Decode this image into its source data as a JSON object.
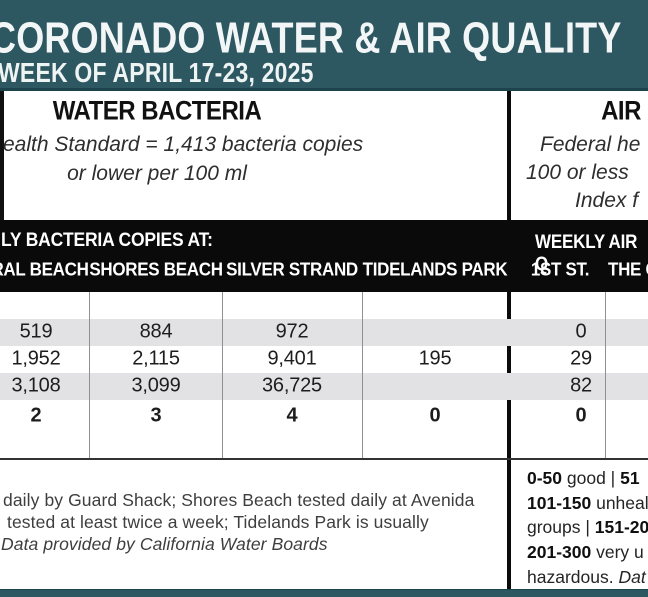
{
  "colors": {
    "teal": "#2d5862",
    "bar_black": "#0a0a0a",
    "row_shade": "#e2e2e5"
  },
  "header": {
    "title": "CORONADO WATER & AIR QUALITY",
    "week": "WEEK OF APRIL 17-23, 2025"
  },
  "water_section": {
    "heading": "WATER BACTERIA",
    "standard_line1": "ealth Standard  = 1,413 bacteria copies",
    "standard_line2": "or lower per 100 ml"
  },
  "air_section": {
    "heading": "AIR",
    "standard_line1": "Federal he",
    "standard_line2": "100 or less",
    "standard_line3": "Index f"
  },
  "chart_data": {
    "type": "table",
    "title": "CORONADO WATER & AIR QUALITY",
    "subtitle": "WEEK OF APRIL 17-23, 2025",
    "water_group_label": "LY BACTERIA COPIES AT:",
    "air_group_label": "WEEKLY AIR Q",
    "columns": [
      "RAL BEACH",
      "SHORES BEACH",
      "SILVER STRAND",
      "TIDELANDS PARK",
      "1ST ST.",
      "THE C"
    ],
    "rows": [
      {
        "values": [
          "",
          "",
          "",
          "",
          "",
          ""
        ]
      },
      {
        "values": [
          "519",
          "884",
          "972",
          "",
          "0",
          ""
        ]
      },
      {
        "values": [
          "1,952",
          "2,115",
          "9,401",
          "195",
          "29",
          ""
        ]
      },
      {
        "values": [
          "3,108",
          "3,099",
          "36,725",
          "",
          "82",
          ""
        ]
      },
      {
        "values": [
          "2",
          "3",
          "4",
          "0",
          "0",
          ""
        ]
      }
    ]
  },
  "footnotes": {
    "line1": "daily by Guard Shack; Shores Beach tested daily at Avenida",
    "line2": "tested at least twice a week; Tidelands Park is usually",
    "line3": "Data provided by California Water Boards"
  },
  "legend": {
    "line1": [
      "0-50",
      " good | ",
      "51"
    ],
    "line2": [
      "101-150",
      " unheal"
    ],
    "line3": [
      "groups | ",
      "151-20"
    ],
    "line4": [
      "201-300",
      " very u"
    ],
    "line5": [
      "hazardous. ",
      "Dat"
    ]
  }
}
